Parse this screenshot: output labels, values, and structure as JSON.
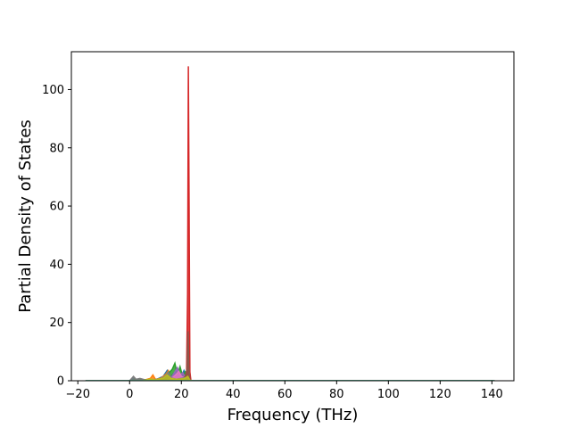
{
  "chart_data": {
    "type": "line",
    "title": "",
    "xlabel": "Frequency (THz)",
    "ylabel": "Partial Density of States",
    "xlim": [
      -22.5,
      148.5
    ],
    "ylim": [
      0,
      113
    ],
    "xticks": [
      -20,
      0,
      20,
      40,
      60,
      80,
      100,
      120,
      140
    ],
    "yticks": [
      0,
      20,
      40,
      60,
      80,
      100
    ],
    "xtick_labels": [
      "−20",
      "0",
      "20",
      "40",
      "60",
      "80",
      "100",
      "120",
      "140"
    ],
    "ytick_labels": [
      "0",
      "20",
      "40",
      "60",
      "80",
      "100"
    ],
    "grid": false,
    "legend": "none",
    "series": [
      {
        "color": "#1f77b4",
        "points": [
          [
            -17,
            0
          ],
          [
            0,
            0
          ],
          [
            1.5,
            0.8
          ],
          [
            2.5,
            0.3
          ],
          [
            4,
            0.6
          ],
          [
            5,
            0.2
          ],
          [
            8,
            0.4
          ],
          [
            10,
            0.3
          ],
          [
            13,
            1.5
          ],
          [
            14.5,
            3.5
          ],
          [
            15.5,
            1
          ],
          [
            17,
            2.5
          ],
          [
            18,
            0.8
          ],
          [
            20,
            1.5
          ],
          [
            21,
            3.5
          ],
          [
            22,
            1.2
          ],
          [
            22.5,
            0
          ],
          [
            23.5,
            0
          ],
          [
            141,
            0
          ]
        ]
      },
      {
        "color": "#ff7f0e",
        "points": [
          [
            -17,
            0
          ],
          [
            3,
            0
          ],
          [
            4,
            0.5
          ],
          [
            6,
            0.3
          ],
          [
            8,
            0.8
          ],
          [
            9,
            2
          ],
          [
            10,
            0.5
          ],
          [
            12,
            0.8
          ],
          [
            14,
            2.2
          ],
          [
            15,
            3.5
          ],
          [
            16,
            1.2
          ],
          [
            17,
            0.5
          ],
          [
            19,
            1.5
          ],
          [
            20,
            0.7
          ],
          [
            21.5,
            2
          ],
          [
            22.3,
            4
          ],
          [
            22.8,
            11
          ],
          [
            23.2,
            3
          ],
          [
            23.6,
            0
          ],
          [
            141,
            0
          ]
        ]
      },
      {
        "color": "#2ca02c",
        "points": [
          [
            -17,
            0
          ],
          [
            1,
            0
          ],
          [
            2,
            0.7
          ],
          [
            3,
            0.2
          ],
          [
            6,
            0.4
          ],
          [
            9,
            0.2
          ],
          [
            13,
            0.8
          ],
          [
            15,
            2.5
          ],
          [
            16.5,
            4
          ],
          [
            17.5,
            6
          ],
          [
            18.5,
            2
          ],
          [
            19.5,
            4.8
          ],
          [
            20.5,
            1.5
          ],
          [
            21.5,
            3
          ],
          [
            22.2,
            1
          ],
          [
            22.8,
            1.5
          ],
          [
            23.4,
            0
          ],
          [
            141,
            0
          ]
        ]
      },
      {
        "color": "#d62728",
        "points": [
          [
            -17,
            0
          ],
          [
            20.5,
            0
          ],
          [
            21.5,
            0.5
          ],
          [
            22,
            2
          ],
          [
            22.4,
            30
          ],
          [
            22.7,
            108
          ],
          [
            23.0,
            60
          ],
          [
            23.3,
            3
          ],
          [
            23.7,
            0
          ],
          [
            141,
            0
          ]
        ]
      },
      {
        "color": "#9467bd",
        "points": [
          [
            -17,
            0
          ],
          [
            14,
            0
          ],
          [
            16,
            1
          ],
          [
            17.5,
            3
          ],
          [
            18.5,
            4.5
          ],
          [
            19.5,
            1.8
          ],
          [
            20.5,
            2.8
          ],
          [
            21.5,
            1.2
          ],
          [
            22.3,
            0.5
          ],
          [
            22.7,
            1
          ],
          [
            23.2,
            0
          ],
          [
            141,
            0
          ]
        ]
      },
      {
        "color": "#8c564b",
        "points": [
          [
            -17,
            0
          ],
          [
            20,
            0
          ],
          [
            21.5,
            1.5
          ],
          [
            22.2,
            4
          ],
          [
            22.6,
            17
          ],
          [
            22.9,
            5
          ],
          [
            23.3,
            0.5
          ],
          [
            23.8,
            0
          ],
          [
            141,
            0
          ]
        ]
      },
      {
        "color": "#e377c2",
        "points": [
          [
            -17,
            0
          ],
          [
            15,
            0
          ],
          [
            16.5,
            1
          ],
          [
            18,
            2.2
          ],
          [
            19,
            3.2
          ],
          [
            20,
            1.5
          ],
          [
            21,
            1
          ],
          [
            22,
            0.3
          ],
          [
            23,
            0
          ],
          [
            141,
            0
          ]
        ]
      },
      {
        "color": "#7f7f7f",
        "points": [
          [
            -17,
            0
          ],
          [
            0,
            0
          ],
          [
            1.5,
            1.5
          ],
          [
            2.5,
            0.5
          ],
          [
            4,
            0.8
          ],
          [
            6,
            0.3
          ],
          [
            9,
            0.4
          ],
          [
            12,
            0.6
          ],
          [
            14,
            1.8
          ],
          [
            15,
            3
          ],
          [
            16,
            1
          ],
          [
            18,
            0.5
          ],
          [
            21,
            1
          ],
          [
            22.5,
            0.3
          ],
          [
            23.5,
            0
          ],
          [
            141,
            0
          ]
        ]
      },
      {
        "color": "#bcbd22",
        "points": [
          [
            -17,
            0
          ],
          [
            5,
            0
          ],
          [
            8,
            0.6
          ],
          [
            10,
            0.3
          ],
          [
            13,
            0.9
          ],
          [
            14.5,
            2
          ],
          [
            16,
            0.8
          ],
          [
            18,
            0.5
          ],
          [
            21,
            0.7
          ],
          [
            22.5,
            1.5
          ],
          [
            23.2,
            0.3
          ],
          [
            24,
            0
          ],
          [
            141,
            0
          ]
        ]
      },
      {
        "color": "#17becf",
        "points": [
          [
            -17,
            0
          ],
          [
            141,
            0
          ]
        ]
      }
    ]
  }
}
